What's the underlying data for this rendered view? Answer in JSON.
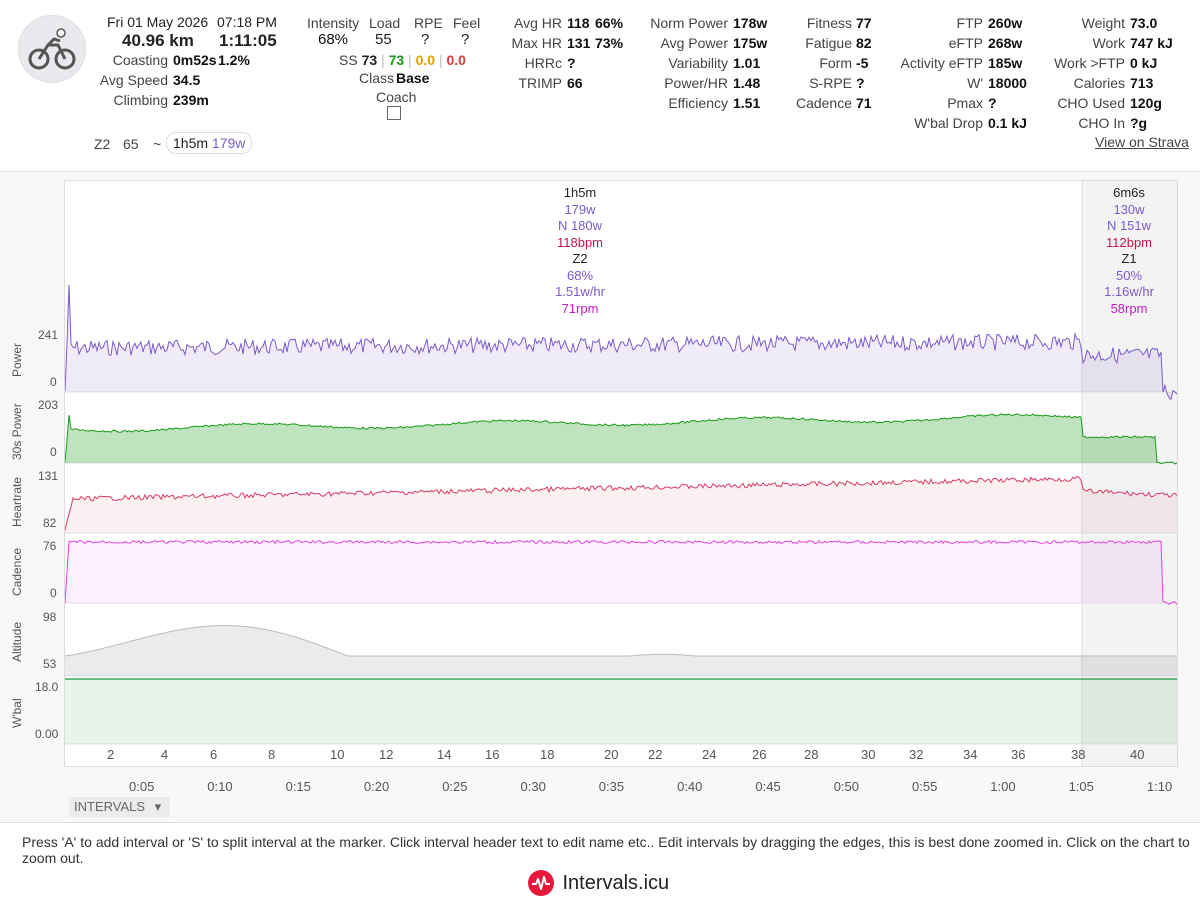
{
  "activity": {
    "date": "Fri 01 May 2026",
    "time": "07:18 PM",
    "distance": "40.96 km",
    "duration": "1:11:05",
    "coasting_label": "Coasting",
    "coasting_value": "0m52s",
    "coasting_pct": "1.2%",
    "avg_speed_label": "Avg Speed",
    "avg_speed_value": "34.5",
    "climbing_label": "Climbing",
    "climbing_value": "239m",
    "zone_label": "Z2",
    "zone_value": "65",
    "zone_tilde": "~",
    "zone_time": "1h5m",
    "zone_power": "179w"
  },
  "load": {
    "intensity_label": "Intensity",
    "intensity_value": "68%",
    "load_label": "Load",
    "load_value": "55",
    "rpe_label": "RPE",
    "rpe_value": "?",
    "feel_label": "Feel",
    "feel_value": "?",
    "ss_label": "SS",
    "ss_v1": "73",
    "ss_v2": "73",
    "ss_v3": "0.0",
    "ss_v4": "0.0",
    "class_label": "Class",
    "class_value": "Base",
    "coach_label": "Coach"
  },
  "hr": {
    "avg_hr_label": "Avg HR",
    "avg_hr_value": "118",
    "avg_hr_pct": "66%",
    "max_hr_label": "Max HR",
    "max_hr_value": "131",
    "max_hr_pct": "73%",
    "hrrc_label": "HRRc",
    "hrrc_value": "?",
    "trimp_label": "TRIMP",
    "trimp_value": "66"
  },
  "power": {
    "norm_label": "Norm Power",
    "norm_value": "178w",
    "avg_label": "Avg Power",
    "avg_value": "175w",
    "var_label": "Variability",
    "var_value": "1.01",
    "phr_label": "Power/HR",
    "phr_value": "1.48",
    "eff_label": "Efficiency",
    "eff_value": "1.51"
  },
  "fitness": {
    "fitness_label": "Fitness",
    "fitness_value": "77",
    "fatigue_label": "Fatigue",
    "fatigue_value": "82",
    "form_label": "Form",
    "form_value": "-5",
    "srpe_label": "S-RPE",
    "srpe_value": "?",
    "cadence_label": "Cadence",
    "cadence_value": "71"
  },
  "ftp": {
    "ftp_label": "FTP",
    "ftp_value": "260w",
    "eftp_label": "eFTP",
    "eftp_value": "268w",
    "act_label": "Activity eFTP",
    "act_value": "185w",
    "w_label": "W'",
    "w_value": "18000",
    "pmax_label": "Pmax",
    "pmax_value": "?",
    "wbal_label": "W'bal Drop",
    "wbal_value": "0.1 kJ"
  },
  "body": {
    "weight_label": "Weight",
    "weight_value": "73.0",
    "work_label": "Work",
    "work_value": "747 kJ",
    "wftp_label": "Work >FTP",
    "wftp_value": "0 kJ",
    "cal_label": "Calories",
    "cal_value": "713",
    "cho_used_label": "CHO Used",
    "cho_used_value": "120g",
    "cho_in_label": "CHO In",
    "cho_in_value": "?g",
    "strava_link": "View on Strava"
  },
  "intervals": [
    {
      "time": "1h5m",
      "power": "179w",
      "np": "N 180w",
      "hr": "118bpm",
      "zone": "Z2",
      "pct": "68%",
      "eff": "1.51w/hr",
      "cad": "71rpm"
    },
    {
      "time": "6m6s",
      "power": "130w",
      "np": "N 151w",
      "hr": "112bpm",
      "zone": "Z1",
      "pct": "50%",
      "eff": "1.16w/hr",
      "cad": "58rpm"
    }
  ],
  "charts": {
    "power": {
      "label": "Power",
      "max": "241",
      "min": "0"
    },
    "power30": {
      "label": "30s Power",
      "max": "203",
      "min": "0"
    },
    "hr": {
      "label": "Heartrate",
      "max": "131",
      "min": "82"
    },
    "cad": {
      "label": "Cadence",
      "max": "76",
      "min": "0"
    },
    "alt": {
      "label": "Altitude",
      "max": "98",
      "min": "53"
    },
    "wbal": {
      "label": "W'bal",
      "max": "18.0",
      "min": "0.00"
    }
  },
  "distance_ticks": [
    "2",
    "4",
    "6",
    "8",
    "10",
    "12",
    "14",
    "16",
    "18",
    "20",
    "22",
    "24",
    "26",
    "28",
    "30",
    "32",
    "34",
    "36",
    "38",
    "40"
  ],
  "time_ticks": [
    "0:05",
    "0:10",
    "0:15",
    "0:20",
    "0:25",
    "0:30",
    "0:35",
    "0:40",
    "0:45",
    "0:50",
    "0:55",
    "1:00",
    "1:05",
    "1:10"
  ],
  "intervals_button": "INTERVALS",
  "footer_note": "Press 'A' to add interval or 'S' to split interval at the marker. Click interval header text to edit name etc.. Edit intervals by dragging the edges, this is best done zoomed in. Click on the chart to zoom out.",
  "brand": "Intervals.icu",
  "colors": {
    "power": "#7b5cc9",
    "power30": "#1a9b1a",
    "hr": "#d63c64",
    "cad": "#e040e0",
    "alt": "#cccccc",
    "wbal": "#3aa65a",
    "accent": "#e8173c"
  }
}
